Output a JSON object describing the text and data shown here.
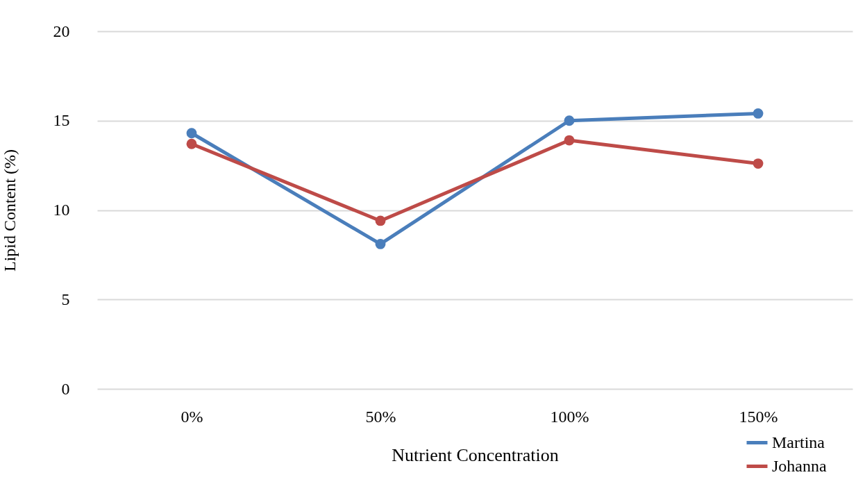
{
  "chart_data": {
    "type": "line",
    "xlabel": "Nutrient Concentration",
    "ylabel": "Lipid Content (%)",
    "categories": [
      "0%",
      "50%",
      "100%",
      "150%"
    ],
    "series": [
      {
        "name": "Martina",
        "color": "#4a7ebb",
        "values": [
          14.3,
          8.1,
          15.0,
          15.4
        ]
      },
      {
        "name": "Johanna",
        "color": "#be4b48",
        "values": [
          13.7,
          9.4,
          13.9,
          12.6
        ]
      }
    ],
    "ylim": [
      0,
      20
    ],
    "yticks": [
      0,
      5,
      10,
      15,
      20
    ],
    "grid": "y",
    "legend": "bottom right",
    "marker": "circle",
    "line_style": "solid"
  }
}
